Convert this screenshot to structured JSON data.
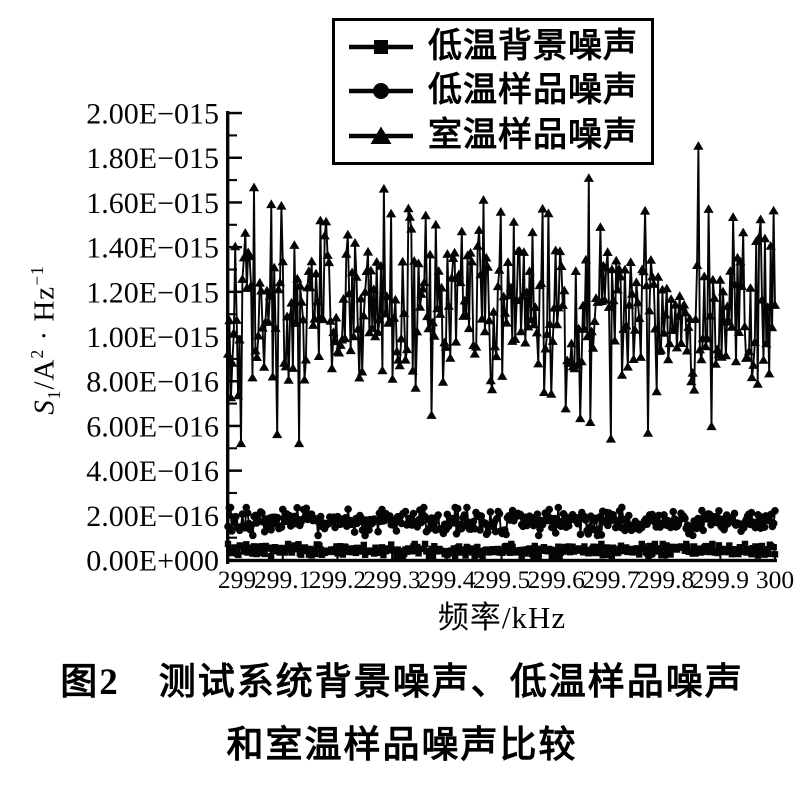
{
  "page": {
    "background": "#ffffff",
    "ink_color": "#050505"
  },
  "figure_caption": {
    "line1": "图2　测试系统背景噪声、低温样品噪声",
    "line2": "和室温样品噪声比较"
  },
  "chart_data": {
    "type": "line",
    "title": "",
    "xlabel": "频率/kHz",
    "ylabel_text": "S1/A2·Hz-1",
    "ylabel_parts": {
      "var": "S",
      "var_sub": "1",
      "denom": "/A",
      "denom_sup": "2",
      "dot": " · ",
      "unit": "Hz",
      "unit_sup": "−1"
    },
    "xlim": [
      299,
      300
    ],
    "ylim": [
      0,
      2e-15
    ],
    "x_tick_values": [
      299,
      299.1,
      299.2,
      299.3,
      299.4,
      299.5,
      299.6,
      299.7,
      299.8,
      299.9,
      300
    ],
    "x_tick_labels": [
      "299",
      "299.1",
      "299.2",
      "299.3",
      "299.4",
      "299.5",
      "299.6",
      "299.7",
      "299.8",
      "299.9",
      "300"
    ],
    "y_tick_values": [
      0,
      2e-16,
      4e-16,
      6e-16,
      8e-16,
      1e-15,
      1.2e-15,
      1.4e-15,
      1.6e-15,
      1.8e-15,
      2e-15
    ],
    "y_tick_labels": [
      "0.00E+000",
      "2.00E−016",
      "4.00E−016",
      "6.00E−016",
      "8.00E−016",
      "1.00E−015",
      "1.20E−015",
      "1.40E−015",
      "1.60E−015",
      "1.80E−015",
      "2.00E−015"
    ],
    "y_minor_tick_values": [
      1e-16,
      3e-16,
      5e-16,
      7e-16,
      9e-16,
      1.1e-15,
      1.3e-15,
      1.5e-15,
      1.7e-15,
      1.9e-15
    ],
    "grid": false,
    "legend_position": "top-center",
    "series": [
      {
        "name": "低温背景噪声",
        "marker": "square",
        "color": "#050505",
        "n_points": 420,
        "mean": 4.4e-17,
        "sd": 1.35e-17,
        "min": 8e-18,
        "max": 7.2e-17,
        "seed": 7,
        "outliers": []
      },
      {
        "name": "低温样品噪声",
        "marker": "circle",
        "color": "#050505",
        "n_points": 420,
        "mean": 1.7e-16,
        "sd": 3e-17,
        "min": 1.1e-16,
        "max": 2.35e-16,
        "seed": 13,
        "outliers": [
          {
            "x": 299.42,
            "value": 2.3e-16
          },
          {
            "x": 299.72,
            "value": 2.35e-16
          }
        ]
      },
      {
        "name": "室温样品噪声",
        "marker": "triangle",
        "color": "#050505",
        "n_points": 380,
        "mean": 1.13e-15,
        "sd": 2.2e-16,
        "min": 5.2e-16,
        "max": 1.9e-15,
        "seed": 42,
        "outliers": [
          {
            "x": 299.86,
            "value": 1.85e-15
          },
          {
            "x": 299.13,
            "value": 5.2e-16
          },
          {
            "x": 299.09,
            "value": 5.6e-16
          },
          {
            "x": 299.7,
            "value": 5.4e-16
          }
        ]
      }
    ]
  }
}
